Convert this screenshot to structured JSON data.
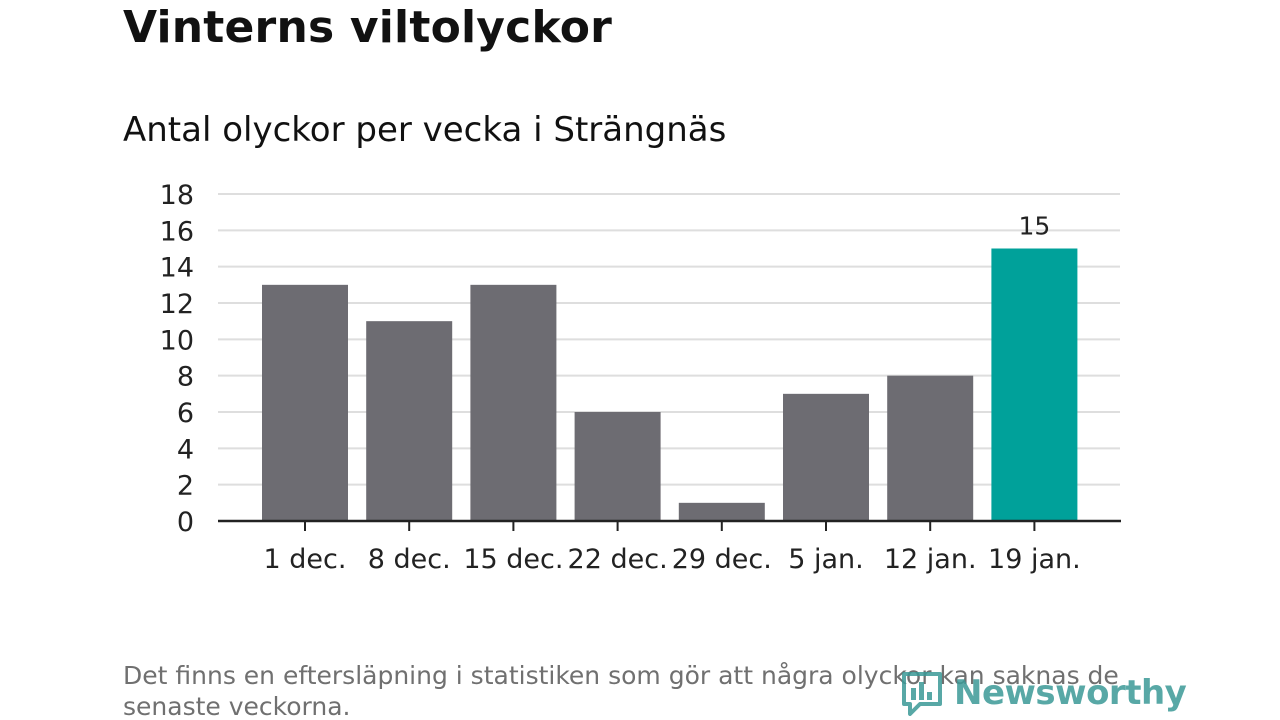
{
  "header": {
    "title": "Vinterns viltolyckor",
    "subtitle": "Antal olyckor per vecka i Strängnäs"
  },
  "footer": {
    "note": "Det finns en eftersläpning i statistiken som gör att några olyckor kan saknas de senaste veckorna.",
    "logo_text": "Newsworthy",
    "logo_icon": "bar-chart-speech-bubble-icon"
  },
  "colors": {
    "bar": "#6d6c72",
    "highlight": "#00a19a",
    "grid": "#dedede",
    "axis": "#222222"
  },
  "chart_data": {
    "type": "bar",
    "title": "Antal olyckor per vecka i Strängnäs",
    "xlabel": "",
    "ylabel": "",
    "categories": [
      "1 dec.",
      "8 dec.",
      "15 dec.",
      "22 dec.",
      "29 dec.",
      "5 jan.",
      "12 jan.",
      "19 jan."
    ],
    "values": [
      13,
      11,
      13,
      6,
      1,
      7,
      8,
      15
    ],
    "highlight_index": 7,
    "data_labels": [
      {
        "index": 7,
        "text": "15"
      }
    ],
    "ylim": [
      0,
      18
    ],
    "yticks": [
      0,
      2,
      4,
      6,
      8,
      10,
      12,
      14,
      16,
      18
    ],
    "grid": true,
    "legend": "none"
  }
}
